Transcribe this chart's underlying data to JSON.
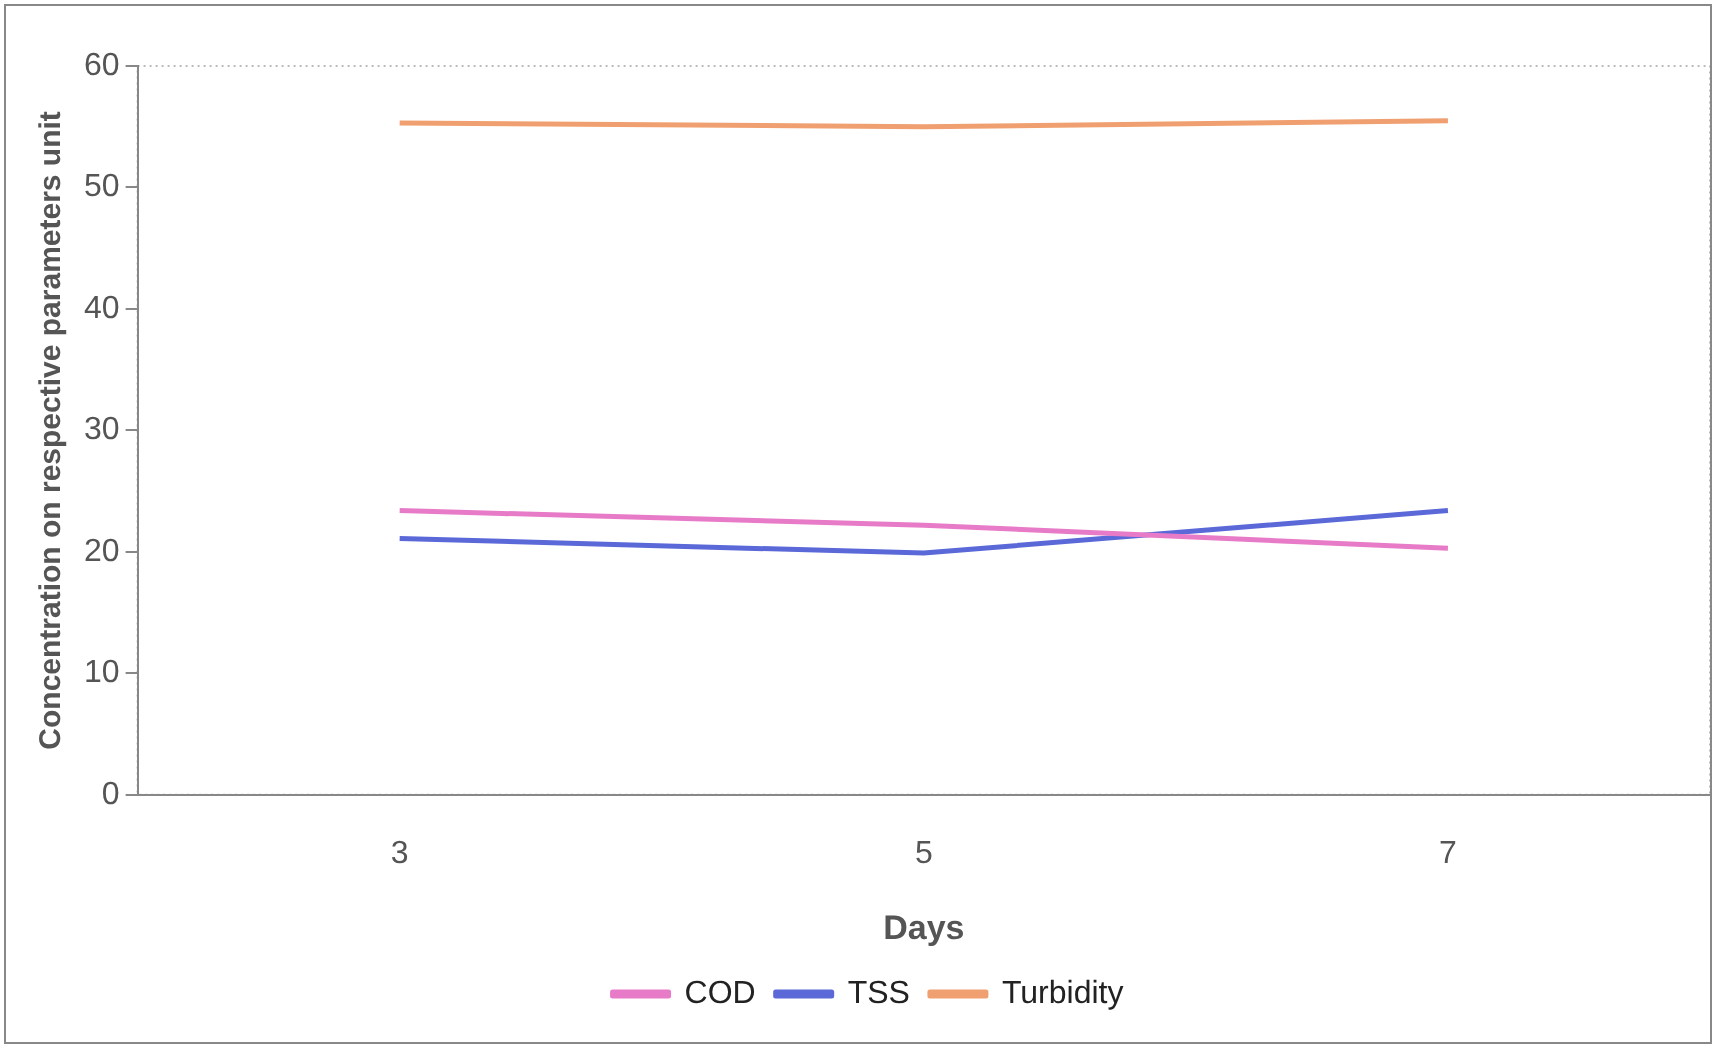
{
  "chart_data": {
    "type": "line",
    "xlabel": "Days",
    "ylabel": "Concentration on respective parameters unit",
    "categories": [
      "3",
      "5",
      "7"
    ],
    "series": [
      {
        "name": "COD",
        "color": "#e87bc8",
        "values": [
          23.4,
          22.2,
          20.3
        ]
      },
      {
        "name": "TSS",
        "color": "#5a68d8",
        "values": [
          21.1,
          19.9,
          23.4
        ]
      },
      {
        "name": "Turbidity",
        "color": "#f0a070",
        "values": [
          55.3,
          55.0,
          55.5
        ]
      }
    ],
    "ylim": [
      0,
      60
    ],
    "yticks": [
      0,
      10,
      20,
      30,
      40,
      50,
      60
    ],
    "grid": false,
    "legend": "bottom",
    "marker": "none",
    "line_style": "solid"
  }
}
